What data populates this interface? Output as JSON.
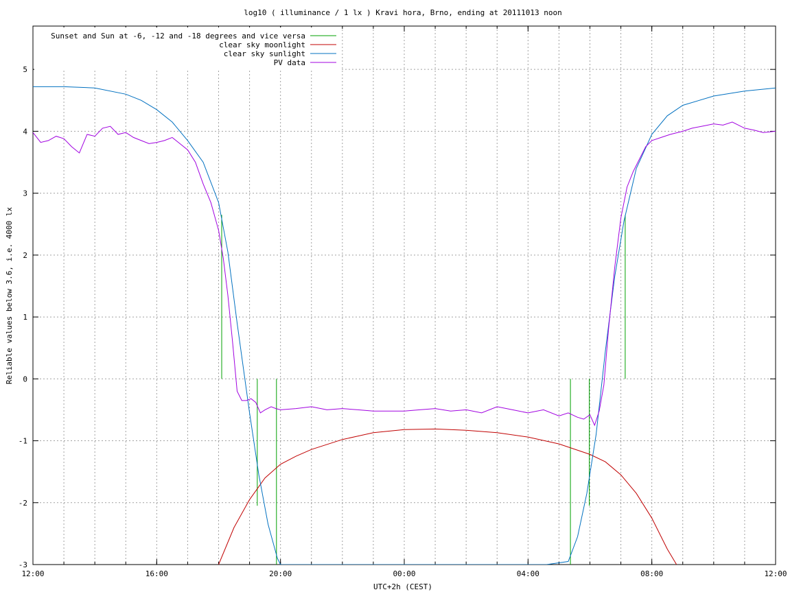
{
  "chart_data": {
    "type": "line",
    "title": "log10 ( illuminance / 1 lx ) Kravi hora, Brno, ending at 20111013 noon",
    "xlabel": "UTC+2h (CEST)",
    "ylabel": "Reliable values below 3.6, i.e. 4000 lx",
    "xlim": [
      0,
      24
    ],
    "ylim": [
      -3,
      5.7
    ],
    "x_ticks": [
      {
        "x": 0,
        "label": "12:00"
      },
      {
        "x": 4,
        "label": "16:00"
      },
      {
        "x": 8,
        "label": "20:00"
      },
      {
        "x": 12,
        "label": "00:00"
      },
      {
        "x": 16,
        "label": "04:00"
      },
      {
        "x": 20,
        "label": "08:00"
      },
      {
        "x": 24,
        "label": "12:00"
      }
    ],
    "y_ticks": [
      {
        "y": -3,
        "label": "-3"
      },
      {
        "y": -2,
        "label": "-2"
      },
      {
        "y": -1,
        "label": "-1"
      },
      {
        "y": 0,
        "label": "0"
      },
      {
        "y": 1,
        "label": "1"
      },
      {
        "y": 2,
        "label": "2"
      },
      {
        "y": 3,
        "label": "3"
      },
      {
        "y": 4,
        "label": "4"
      },
      {
        "y": 5,
        "label": "5"
      }
    ],
    "grid": true,
    "legend_position": "top-left",
    "series": [
      {
        "name": "Sunset and Sun at -6, -12 and -18 degrees and vice versa",
        "color": "#00a000",
        "kind": "vertical-segments",
        "segments": [
          {
            "x": 6.1,
            "y0": 0,
            "y1": 2.65
          },
          {
            "x": 7.25,
            "y0": -2.05,
            "y1": 0
          },
          {
            "x": 7.87,
            "y0": -3,
            "y1": 0
          },
          {
            "x": 17.37,
            "y0": -3,
            "y1": 0
          },
          {
            "x": 17.98,
            "y0": -2.05,
            "y1": 0
          },
          {
            "x": 19.14,
            "y0": 0,
            "y1": 2.65
          }
        ]
      },
      {
        "name": "clear sky moonlight",
        "color": "#c00000",
        "x": [
          6.0,
          6.5,
          7.0,
          7.5,
          8.0,
          8.5,
          9.0,
          10.0,
          11.0,
          12.0,
          13.0,
          14.0,
          15.0,
          16.0,
          17.0,
          18.0,
          18.5,
          19.0,
          19.5,
          20.0,
          20.5,
          20.8
        ],
        "y": [
          -3.0,
          -2.4,
          -1.95,
          -1.6,
          -1.38,
          -1.25,
          -1.14,
          -0.98,
          -0.87,
          -0.82,
          -0.81,
          -0.83,
          -0.87,
          -0.94,
          -1.05,
          -1.22,
          -1.34,
          -1.55,
          -1.85,
          -2.25,
          -2.75,
          -3.0
        ]
      },
      {
        "name": "clear sky sunlight",
        "color": "#0070c0",
        "x": [
          0,
          1,
          2,
          3,
          3.5,
          4.0,
          4.5,
          5.0,
          5.5,
          6.0,
          6.3,
          6.6,
          7.0,
          7.3,
          7.6,
          7.9,
          8.0,
          16.6,
          17.3,
          17.6,
          17.9,
          18.2,
          18.5,
          18.8,
          19.1,
          19.5,
          20.0,
          20.5,
          21.0,
          22.0,
          23.0,
          24.0
        ],
        "y": [
          4.72,
          4.72,
          4.7,
          4.6,
          4.5,
          4.35,
          4.15,
          3.85,
          3.5,
          2.85,
          2.05,
          0.9,
          -0.55,
          -1.55,
          -2.35,
          -2.9,
          -3.0,
          -3.0,
          -2.95,
          -2.55,
          -1.85,
          -0.9,
          0.45,
          1.65,
          2.55,
          3.4,
          3.95,
          4.25,
          4.42,
          4.57,
          4.65,
          4.7
        ]
      },
      {
        "name": "PV data",
        "color": "#a000e0",
        "x": [
          0,
          0.25,
          0.5,
          0.75,
          1.0,
          1.25,
          1.5,
          1.75,
          2.0,
          2.25,
          2.5,
          2.75,
          3.0,
          3.25,
          3.5,
          3.75,
          4.0,
          4.25,
          4.5,
          4.75,
          5.0,
          5.25,
          5.5,
          5.75,
          6.0,
          6.15,
          6.3,
          6.45,
          6.6,
          6.75,
          6.9,
          7.05,
          7.2,
          7.35,
          7.5,
          7.7,
          7.85,
          8.0,
          8.5,
          9.0,
          9.5,
          10.0,
          10.5,
          11.0,
          11.5,
          12.0,
          12.5,
          13.0,
          13.5,
          14.0,
          14.5,
          15.0,
          15.5,
          16.0,
          16.5,
          17.0,
          17.3,
          17.6,
          17.8,
          18.0,
          18.15,
          18.3,
          18.45,
          18.6,
          18.8,
          19.0,
          19.2,
          19.4,
          19.6,
          19.8,
          20.0,
          20.3,
          20.6,
          21.0,
          21.3,
          21.6,
          22.0,
          22.3,
          22.6,
          23.0,
          23.3,
          23.6,
          24.0
        ],
        "y": [
          3.98,
          3.82,
          3.85,
          3.92,
          3.88,
          3.75,
          3.65,
          3.95,
          3.92,
          4.05,
          4.08,
          3.95,
          3.98,
          3.9,
          3.85,
          3.8,
          3.82,
          3.85,
          3.9,
          3.8,
          3.7,
          3.5,
          3.15,
          2.85,
          2.4,
          1.95,
          1.35,
          0.6,
          -0.2,
          -0.35,
          -0.35,
          -0.32,
          -0.38,
          -0.55,
          -0.5,
          -0.45,
          -0.48,
          -0.5,
          -0.48,
          -0.45,
          -0.5,
          -0.48,
          -0.5,
          -0.52,
          -0.52,
          -0.52,
          -0.5,
          -0.48,
          -0.52,
          -0.5,
          -0.55,
          -0.45,
          -0.5,
          -0.55,
          -0.5,
          -0.6,
          -0.55,
          -0.62,
          -0.65,
          -0.58,
          -0.75,
          -0.52,
          -0.1,
          0.8,
          1.8,
          2.6,
          3.1,
          3.35,
          3.55,
          3.75,
          3.85,
          3.9,
          3.95,
          4.0,
          4.05,
          4.08,
          4.12,
          4.1,
          4.15,
          4.05,
          4.02,
          3.98,
          4.0
        ]
      }
    ]
  }
}
